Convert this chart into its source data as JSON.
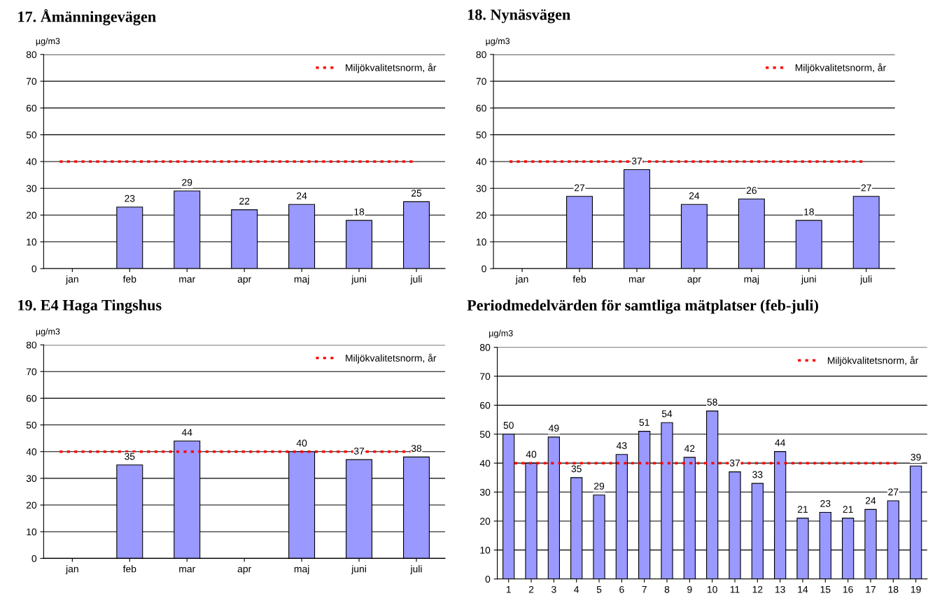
{
  "chart_data": [
    {
      "type": "bar",
      "title": "17. Åmänningevägen",
      "ylabel": "µg/m3",
      "categories": [
        "jan",
        "feb",
        "mar",
        "apr",
        "maj",
        "juni",
        "juli"
      ],
      "series": [
        {
          "color": "#9999ff",
          "values": [
            null,
            23,
            29,
            22,
            24,
            18,
            25
          ]
        }
      ],
      "ylim": [
        0,
        80
      ],
      "yticks": [
        0,
        10,
        20,
        30,
        40,
        50,
        60,
        70,
        80
      ],
      "grid": "y",
      "data_labels": true,
      "legend": "top right",
      "ref_lines": [
        {
          "axis": "y",
          "value": 40,
          "label": "Miljökvalitetsnorm, år",
          "color": "#ff0000",
          "line_style": "dotted"
        }
      ]
    },
    {
      "type": "bar",
      "title": "18. Nynäsvägen",
      "ylabel": "µg/m3",
      "categories": [
        "jan",
        "feb",
        "mar",
        "apr",
        "maj",
        "juni",
        "juli"
      ],
      "series": [
        {
          "color": "#9999ff",
          "values": [
            null,
            27,
            37,
            24,
            26,
            18,
            27
          ]
        }
      ],
      "ylim": [
        0,
        80
      ],
      "yticks": [
        0,
        10,
        20,
        30,
        40,
        50,
        60,
        70,
        80
      ],
      "grid": "y",
      "data_labels": true,
      "legend": "top right",
      "ref_lines": [
        {
          "axis": "y",
          "value": 40,
          "label": "Miljökvalitetsnorm, år",
          "color": "#ff0000",
          "line_style": "dotted"
        }
      ]
    },
    {
      "type": "bar",
      "title": "19. E4 Haga Tingshus",
      "ylabel": "µg/m3",
      "categories": [
        "jan",
        "feb",
        "mar",
        "apr",
        "maj",
        "juni",
        "juli"
      ],
      "series": [
        {
          "color": "#9999ff",
          "values": [
            null,
            35,
            44,
            null,
            40,
            37,
            38
          ]
        }
      ],
      "ylim": [
        0,
        80
      ],
      "yticks": [
        0,
        10,
        20,
        30,
        40,
        50,
        60,
        70,
        80
      ],
      "grid": "y",
      "data_labels": true,
      "legend": "top right",
      "ref_lines": [
        {
          "axis": "y",
          "value": 40,
          "label": "Miljökvalitetsnorm, år",
          "color": "#ff0000",
          "line_style": "dotted"
        }
      ]
    },
    {
      "type": "bar",
      "title": "Periodmedelvärden för samtliga mätplatser (feb-juli)",
      "ylabel": "µg/m3",
      "categories": [
        "1",
        "2",
        "3",
        "4",
        "5",
        "6",
        "7",
        "8",
        "9",
        "10",
        "11",
        "12",
        "13",
        "14",
        "15",
        "16",
        "17",
        "18",
        "19"
      ],
      "series": [
        {
          "color": "#9999ff",
          "values": [
            50,
            40,
            49,
            35,
            29,
            43,
            51,
            54,
            42,
            58,
            37,
            33,
            44,
            21,
            23,
            21,
            24,
            27,
            39
          ]
        }
      ],
      "ylim": [
        0,
        80
      ],
      "yticks": [
        0,
        10,
        20,
        30,
        40,
        50,
        60,
        70,
        80
      ],
      "grid": "y",
      "data_labels": true,
      "legend": "top right",
      "ref_lines": [
        {
          "axis": "y",
          "value": 40,
          "label": "Miljökvalitetsnorm, år",
          "color": "#ff0000",
          "line_style": "dotted"
        }
      ]
    }
  ]
}
